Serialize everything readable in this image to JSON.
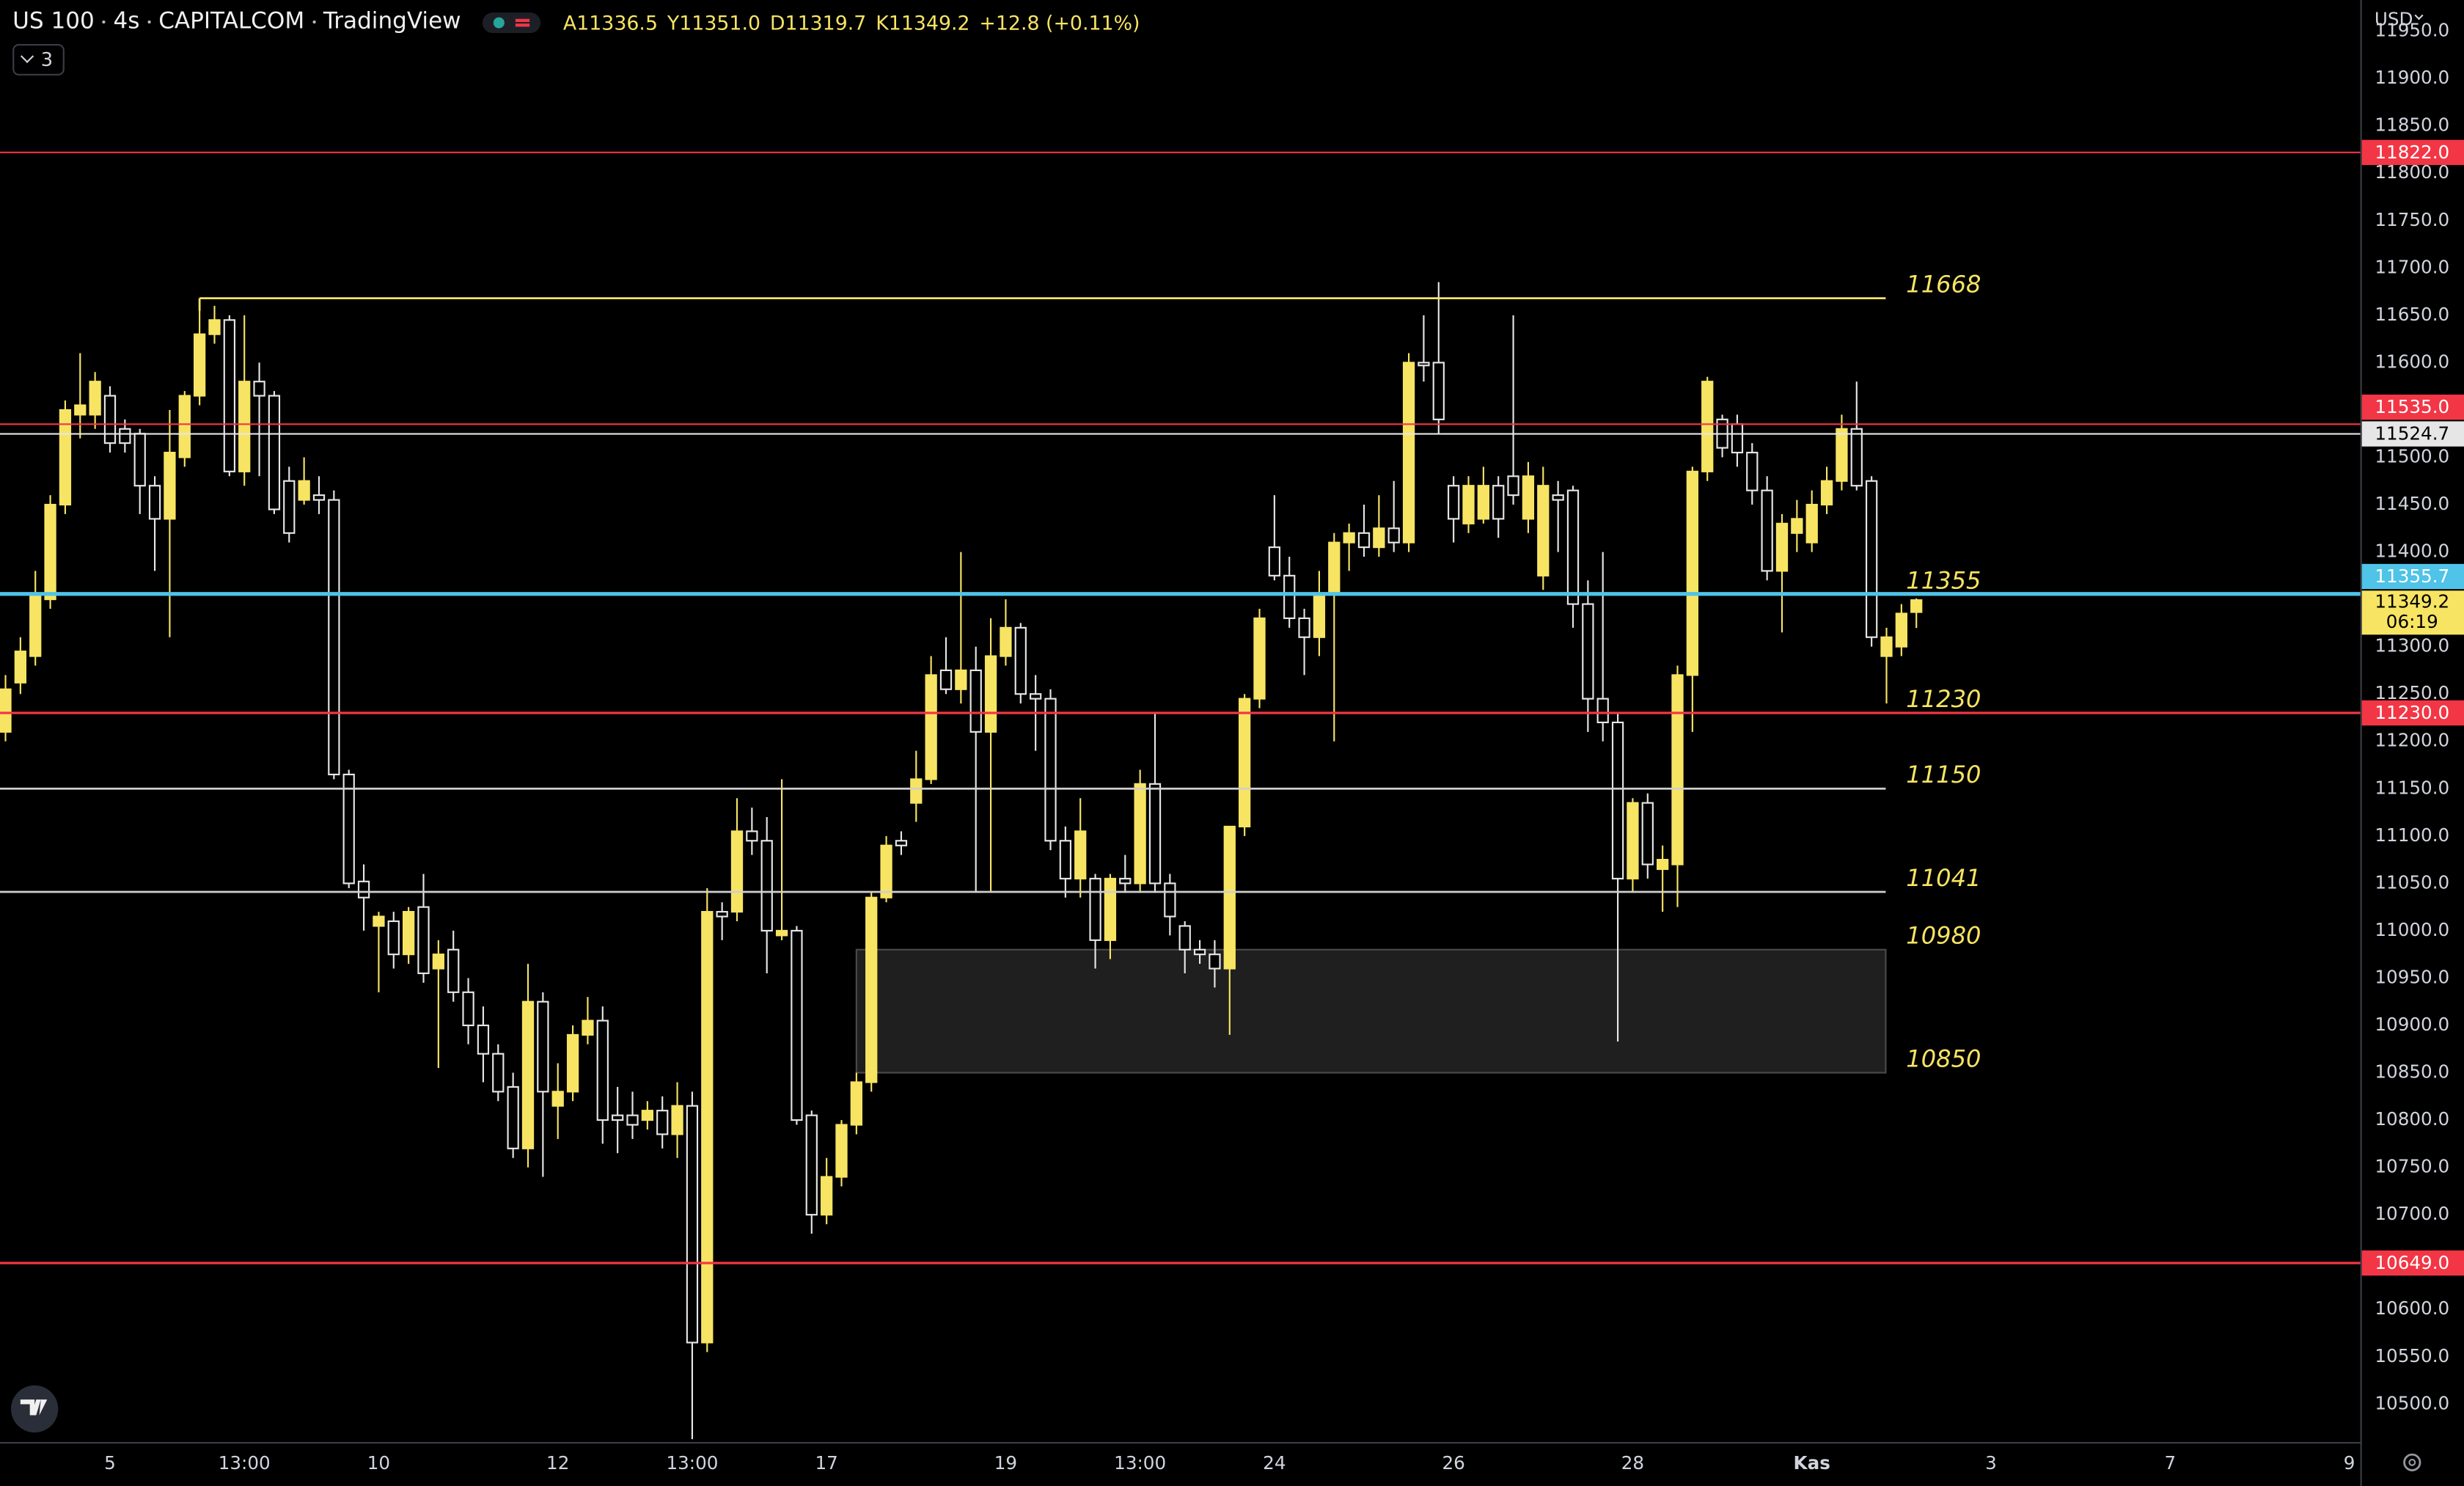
{
  "header": {
    "symbol": "US 100",
    "interval": "4s",
    "exchange": "CAPITALCOM",
    "source": "TradingView",
    "ohlc": [
      {
        "key": "A",
        "value": "11336.5"
      },
      {
        "key": "Y",
        "value": "11351.0"
      },
      {
        "key": "D",
        "value": "11319.7"
      },
      {
        "key": "K",
        "value": "11349.2"
      }
    ],
    "change": "+12.8 (+0.11%)",
    "indicators": "3",
    "currency": "USD"
  },
  "chart_data": {
    "type": "candlestick",
    "up_color": "#f7e463",
    "down_color": "#e6e6e6",
    "categories": [
      null,
      null,
      null,
      null,
      null,
      null,
      null,
      "5",
      null,
      null,
      null,
      null,
      null,
      null,
      null,
      null,
      "13:00",
      null,
      null,
      null,
      null,
      null,
      null,
      null,
      null,
      "10",
      null,
      null,
      null,
      null,
      null,
      null,
      null,
      null,
      null,
      null,
      null,
      "12",
      null,
      null,
      null,
      null,
      null,
      null,
      null,
      null,
      "13:00",
      null,
      null,
      null,
      null,
      null,
      null,
      null,
      null,
      "17",
      null,
      null,
      null,
      null,
      null,
      null,
      null,
      null,
      null,
      null,
      null,
      "19",
      null,
      null,
      null,
      null,
      null,
      null,
      null,
      null,
      "13:00",
      null,
      null,
      null,
      null,
      null,
      null,
      null,
      null,
      "24",
      null,
      null,
      null,
      null,
      null,
      null,
      null,
      null,
      null,
      null,
      null,
      "26",
      null,
      null,
      null,
      null,
      null,
      null,
      null,
      null,
      null,
      null,
      null,
      "28",
      null,
      null,
      null,
      null,
      null,
      null,
      null,
      null,
      null,
      null,
      null,
      "Kas",
      null,
      null,
      null,
      null,
      null,
      null,
      null,
      null,
      null,
      null,
      null,
      "3",
      null,
      null,
      null,
      null,
      null,
      null,
      null,
      null,
      null,
      null,
      null,
      "7",
      null,
      null,
      null,
      null,
      null,
      null,
      null,
      null,
      null,
      null,
      null,
      "9"
    ],
    "candles": {
      "open": [
        11210,
        11262,
        11290,
        11350,
        11450,
        11545,
        11545,
        11565,
        11530,
        11525,
        11470,
        11435,
        11500,
        11565,
        11630,
        11645,
        11485,
        11580,
        11565,
        11475,
        11455,
        11460,
        11455,
        11165,
        11052,
        11005,
        11010,
        10975,
        11025,
        10960,
        10980,
        10935,
        10900,
        10870,
        10835,
        10770,
        10925,
        10815,
        10830,
        10890,
        10905,
        10805,
        10805,
        10800,
        10810,
        10785,
        10815,
        10565,
        11020,
        11020,
        11105,
        11095,
        10995,
        11000,
        10805,
        10700,
        10740,
        10795,
        10840,
        11035,
        11095,
        11135,
        11160,
        11275,
        11255,
        11275,
        11210,
        11290,
        11320,
        11250,
        11245,
        11095,
        11055,
        11055,
        10990,
        11055,
        11050,
        11155,
        11050,
        11005,
        10980,
        10975,
        10960,
        11110,
        11245,
        11405,
        11375,
        11330,
        11310,
        11355,
        11410,
        11420,
        11405,
        11425,
        11410,
        11600,
        11600,
        11470,
        11430,
        11435,
        11470,
        11480,
        11435,
        11375,
        11460,
        11465,
        11345,
        11245,
        11220,
        11055,
        11135,
        11065,
        11070,
        11270,
        11485,
        11540,
        11535,
        11505,
        11465,
        11380,
        11420,
        11410,
        11450,
        11475,
        11530,
        11475,
        11290,
        11300,
        11336.5,
        null,
        null,
        null,
        null,
        null,
        null,
        null,
        null,
        null,
        null,
        null,
        null,
        null,
        null,
        null,
        null,
        null,
        null,
        null,
        null,
        null,
        null,
        null,
        null,
        null,
        null,
        null,
        null,
        null
      ],
      "high": [
        11270,
        11310,
        11380,
        11460,
        11560,
        11610,
        11590,
        11575,
        11540,
        11530,
        11480,
        11550,
        11570,
        11668,
        11660,
        11650,
        11650,
        11600,
        11570,
        11490,
        11500,
        11480,
        11465,
        11170,
        11070,
        11020,
        11020,
        11025,
        11060,
        10990,
        11000,
        10950,
        10920,
        10880,
        10850,
        10965,
        10935,
        10860,
        10900,
        10930,
        10920,
        10835,
        10830,
        10820,
        10825,
        10840,
        10830,
        11045,
        11030,
        11140,
        11130,
        11120,
        11160,
        11005,
        10810,
        10760,
        10800,
        10850,
        11040,
        11100,
        11105,
        11190,
        11290,
        11310,
        11400,
        11300,
        11330,
        11350,
        11325,
        11270,
        11255,
        11110,
        11140,
        11060,
        11060,
        11080,
        11170,
        11230,
        11060,
        11010,
        10990,
        10990,
        11110,
        11250,
        11340,
        11460,
        11395,
        11340,
        11380,
        11420,
        11430,
        11450,
        11460,
        11475,
        11610,
        11650,
        11685,
        11480,
        11480,
        11490,
        11480,
        11650,
        11495,
        11490,
        11475,
        11470,
        11370,
        11400,
        11230,
        11140,
        11145,
        11090,
        11280,
        11490,
        11585,
        11545,
        11545,
        11515,
        11480,
        11440,
        11455,
        11465,
        11490,
        11545,
        11580,
        11480,
        11320,
        11345,
        11351,
        null,
        null,
        null,
        null,
        null,
        null,
        null,
        null,
        null,
        null,
        null,
        null,
        null,
        null,
        null,
        null,
        null,
        null,
        null,
        null,
        null,
        null,
        null,
        null,
        null,
        null,
        null,
        null,
        null
      ],
      "low": [
        11200,
        11250,
        11280,
        11340,
        11440,
        11520,
        11530,
        11505,
        11505,
        11440,
        11380,
        11310,
        11490,
        11555,
        11620,
        11480,
        11470,
        11480,
        11440,
        11410,
        11450,
        11440,
        11160,
        11045,
        11000,
        10935,
        10960,
        10965,
        10945,
        10855,
        10925,
        10880,
        10840,
        10820,
        10760,
        10750,
        10740,
        10780,
        10820,
        10880,
        10775,
        10765,
        10780,
        10790,
        10770,
        10760,
        10463,
        10555,
        10990,
        11010,
        11080,
        10955,
        10990,
        10795,
        10680,
        10690,
        10730,
        10785,
        10830,
        11030,
        11080,
        11115,
        11155,
        11250,
        11240,
        11040,
        11040,
        11280,
        11240,
        11190,
        11085,
        11035,
        11035,
        10960,
        10970,
        11040,
        11040,
        11040,
        10995,
        10955,
        10965,
        10940,
        10890,
        11100,
        11235,
        11370,
        11320,
        11270,
        11290,
        11200,
        11380,
        11395,
        11395,
        11400,
        11400,
        11580,
        11525,
        11410,
        11420,
        11430,
        11415,
        11450,
        11420,
        11360,
        11400,
        11320,
        11210,
        11200,
        10883,
        11040,
        11055,
        11020,
        11025,
        11210,
        11475,
        11500,
        11490,
        11450,
        11370,
        11315,
        11400,
        11400,
        11440,
        11465,
        11465,
        11300,
        11240,
        11290,
        11319.7,
        null,
        null,
        null,
        null,
        null,
        null,
        null,
        null,
        null,
        null,
        null,
        null,
        null,
        null,
        null,
        null,
        null,
        null,
        null,
        null,
        null,
        null,
        null,
        null,
        null,
        null,
        null,
        null,
        null
      ],
      "close": [
        11255,
        11295,
        11355,
        11450,
        11550,
        11555,
        11580,
        11515,
        11515,
        11470,
        11435,
        11505,
        11565,
        11630,
        11645,
        11485,
        11580,
        11565,
        11445,
        11420,
        11475,
        11455,
        11165,
        11050,
        11035,
        11015,
        10975,
        11020,
        10955,
        10975,
        10935,
        10900,
        10870,
        10830,
        10770,
        10925,
        10830,
        10830,
        10890,
        10905,
        10800,
        10800,
        10795,
        10810,
        10785,
        10815,
        10565,
        11020,
        11015,
        11105,
        11095,
        11000,
        11000,
        10800,
        10700,
        10740,
        10795,
        10840,
        11035,
        11090,
        11090,
        11160,
        11270,
        11255,
        11275,
        11210,
        11290,
        11320,
        11250,
        11245,
        11095,
        11055,
        11105,
        10990,
        11055,
        11050,
        11155,
        11050,
        11015,
        10980,
        10975,
        10960,
        11110,
        11245,
        11330,
        11375,
        11330,
        11310,
        11355,
        11410,
        11420,
        11405,
        11425,
        11410,
        11600,
        11597,
        11540,
        11435,
        11470,
        11470,
        11435,
        11460,
        11480,
        11470,
        11455,
        11345,
        11245,
        11220,
        11055,
        11135,
        11070,
        11075,
        11270,
        11485,
        11580,
        11510,
        11505,
        11465,
        11380,
        11430,
        11435,
        11450,
        11475,
        11530,
        11470,
        11310,
        11310,
        11335,
        11349.2,
        null,
        null,
        null,
        null,
        null,
        null,
        null,
        null,
        null,
        null,
        null,
        null,
        null,
        null,
        null,
        null,
        null,
        null,
        null,
        null,
        null,
        null,
        null,
        null,
        null,
        null,
        null,
        null,
        null
      ]
    },
    "ylim": [
      10460,
      11983
    ],
    "yticks": [
      {
        "value": 11950,
        "label": "11950.0"
      },
      {
        "value": 11900,
        "label": "11900.0"
      },
      {
        "value": 11850,
        "label": "11850.0"
      },
      {
        "value": 11800,
        "label": "11800.0"
      },
      {
        "value": 11750,
        "label": "11750.0"
      },
      {
        "value": 11700,
        "label": "11700.0"
      },
      {
        "value": 11650,
        "label": "11650.0"
      },
      {
        "value": 11600,
        "label": "11600.0"
      },
      {
        "value": 11550,
        "label": "11550.0"
      },
      {
        "value": 11500,
        "label": "11500.0"
      },
      {
        "value": 11450,
        "label": "11450.0"
      },
      {
        "value": 11400,
        "label": "11400.0"
      },
      {
        "value": 11350,
        "label": "11350.0"
      },
      {
        "value": 11300,
        "label": "11300.0"
      },
      {
        "value": 11250,
        "label": "11250.0"
      },
      {
        "value": 11200,
        "label": "11200.0"
      },
      {
        "value": 11150,
        "label": "11150.0"
      },
      {
        "value": 11100,
        "label": "11100.0"
      },
      {
        "value": 11050,
        "label": "11050.0"
      },
      {
        "value": 11000,
        "label": "11000.0"
      },
      {
        "value": 10950,
        "label": "10950.0"
      },
      {
        "value": 10900,
        "label": "10900.0"
      },
      {
        "value": 10850,
        "label": "10850.0"
      },
      {
        "value": 10800,
        "label": "10800.0"
      },
      {
        "value": 10750,
        "label": "10750.0"
      },
      {
        "value": 10700,
        "label": "10700.0"
      },
      {
        "value": 10650,
        "label": "10650.0"
      },
      {
        "value": 10600,
        "label": "10600.0"
      },
      {
        "value": 10550,
        "label": "10550.0"
      },
      {
        "value": 10500,
        "label": "10500.0"
      }
    ],
    "price_lines": [
      {
        "value": 11822,
        "label": "11822.0",
        "color": "#f23645",
        "text_color": "#ffffff",
        "width": 1
      },
      {
        "value": 11535,
        "label": "11535.0",
        "color": "#f23645",
        "text_color": "#ffffff",
        "width": 1
      },
      {
        "value": 11524.7,
        "label": "11524.7",
        "color": "#e6e6e6",
        "text_color": "#000000",
        "width": 1
      },
      {
        "value": 11355.7,
        "label": "11355.7",
        "color": "#4fc3e8",
        "text_color": "#ffffff",
        "width": 2.5
      },
      {
        "value": 11230,
        "label": "11230.0",
        "color": "#f23645",
        "text_color": "#ffffff",
        "width": 1.5
      },
      {
        "value": 10649,
        "label": "10649.0",
        "color": "#f23645",
        "text_color": "#ffffff",
        "width": 1.5
      }
    ],
    "last_price": {
      "value": 11349.2,
      "label": "11349.2",
      "countdown": "06:19",
      "color": "#f7e463"
    },
    "levels": [
      {
        "value": 11668,
        "color": "#f7e463"
      },
      {
        "value": 11150,
        "color": "#cfcfcf"
      },
      {
        "value": 11041,
        "color": "#cfcfcf"
      }
    ],
    "zone": {
      "top": 10980,
      "bottom": 10850
    },
    "annotations": [
      {
        "label": "11668",
        "value": 11668
      },
      {
        "label": "11355",
        "value": 11355
      },
      {
        "label": "11230",
        "value": 11230
      },
      {
        "label": "11150",
        "value": 11150
      },
      {
        "label": "11041",
        "value": 11041
      },
      {
        "label": "10980",
        "value": 10980
      },
      {
        "label": "10850",
        "value": 10850
      }
    ]
  }
}
